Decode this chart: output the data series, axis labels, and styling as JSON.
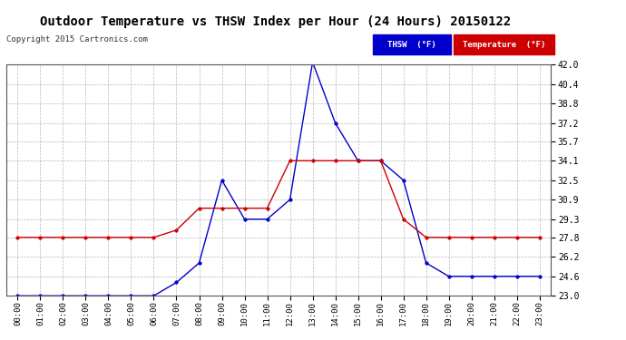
{
  "title": "Outdoor Temperature vs THSW Index per Hour (24 Hours) 20150122",
  "copyright": "Copyright 2015 Cartronics.com",
  "hours": [
    "00:00",
    "01:00",
    "02:00",
    "03:00",
    "04:00",
    "05:00",
    "06:00",
    "07:00",
    "08:00",
    "09:00",
    "10:00",
    "11:00",
    "12:00",
    "13:00",
    "14:00",
    "15:00",
    "16:00",
    "17:00",
    "18:00",
    "19:00",
    "20:00",
    "21:00",
    "22:00",
    "23:00"
  ],
  "temperature": [
    27.8,
    27.8,
    27.8,
    27.8,
    27.8,
    27.8,
    27.8,
    28.4,
    30.2,
    30.2,
    30.2,
    30.2,
    34.1,
    34.1,
    34.1,
    34.1,
    34.1,
    29.3,
    27.8,
    27.8,
    27.8,
    27.8,
    27.8,
    27.8
  ],
  "thsw": [
    23.0,
    23.0,
    23.0,
    23.0,
    23.0,
    23.0,
    23.0,
    24.1,
    25.7,
    32.5,
    29.3,
    29.3,
    30.9,
    42.2,
    37.2,
    34.1,
    34.1,
    32.5,
    25.7,
    24.6,
    24.6,
    24.6,
    24.6,
    24.6
  ],
  "temp_color": "#cc0000",
  "thsw_color": "#0000cc",
  "marker": "o",
  "marker_size": 2.5,
  "ylim_min": 23.0,
  "ylim_max": 42.0,
  "yticks": [
    23.0,
    24.6,
    26.2,
    27.8,
    29.3,
    30.9,
    32.5,
    34.1,
    35.7,
    37.2,
    38.8,
    40.4,
    42.0
  ],
  "bg_color": "#ffffff",
  "grid_color": "#888888",
  "legend_thsw_bg": "#0000cc",
  "legend_temp_bg": "#cc0000",
  "legend_text_thsw": "THSW  (°F)",
  "legend_text_temp": "Temperature  (°F)"
}
